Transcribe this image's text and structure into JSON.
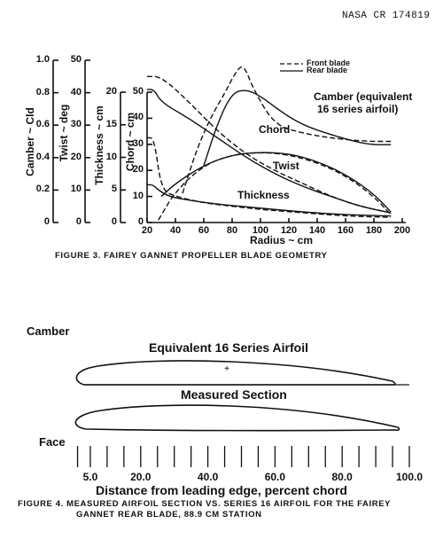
{
  "header": {
    "report_id": "NASA CR 174819"
  },
  "figure3": {
    "caption": "FIGURE 3. FAIREY GANNET PROPELLER BLADE GEOMETRY",
    "legend": {
      "front": "Front blade",
      "rear": "Rear blade"
    },
    "curve_labels": {
      "camber_line1": "Camber (equivalent",
      "camber_line2": "16 series airfoil)",
      "chord": "Chord",
      "twist": "Twist",
      "thickness": "Thickness"
    },
    "axes": {
      "camber": {
        "label": "Camber ~ Cld",
        "ticks": [
          "1.0",
          "0.8",
          "0.6",
          "0.4",
          "0.2",
          "0"
        ]
      },
      "twist": {
        "label": "Twist ~ deg",
        "ticks": [
          "50",
          "40",
          "30",
          "20",
          "10",
          "0"
        ]
      },
      "thickness": {
        "label": "Thickness ~ cm",
        "ticks": [
          "20",
          "15",
          "10",
          "5",
          "0"
        ]
      },
      "chord": {
        "label": "Chord ~ cm",
        "ticks": [
          "50",
          "40",
          "30",
          "20",
          "10",
          "0"
        ]
      },
      "radius": {
        "label": "Radius ~ cm",
        "ticks": [
          "20",
          "40",
          "60",
          "80",
          "100",
          "120",
          "140",
          "160",
          "180",
          "200"
        ]
      }
    }
  },
  "figure4": {
    "camber_label": "Camber",
    "upper_title": "Equivalent 16 Series Airfoil",
    "lower_title": "Measured Section",
    "face_label": "Face",
    "x_ticks": [
      "5.0",
      "20.0",
      "40.0",
      "60.0",
      "80.0",
      "100.0"
    ],
    "x_label": "Distance from leading edge, percent chord",
    "caption_line1": "FIGURE 4.  MEASURED AIRFOIL SECTION VS. SERIES 16 AIRFOIL FOR THE FAIREY",
    "caption_line2": "GANNET REAR BLADE, 88.9 CM STATION"
  },
  "chart_data": [
    {
      "type": "line",
      "title": "FAIREY GANNET PROPELLER BLADE GEOMETRY",
      "xlabel": "Radius ~ cm",
      "xlim": [
        20,
        200
      ],
      "y_axes": [
        {
          "label": "Camber ~ Cld",
          "lim": [
            0,
            1.0
          ]
        },
        {
          "label": "Twist ~ deg",
          "lim": [
            0,
            50
          ]
        },
        {
          "label": "Thickness ~ cm",
          "lim": [
            0,
            20
          ]
        },
        {
          "label": "Chord ~ cm",
          "lim": [
            0,
            50
          ]
        }
      ],
      "legend": {
        "front": "Front blade (dashed)",
        "rear": "Rear blade (solid)"
      },
      "series": [
        {
          "name": "Camber - Front blade",
          "axis": "Camber ~ Cld",
          "x": [
            45,
            55,
            65,
            75,
            82,
            88,
            95,
            110,
            130,
            150,
            175,
            192
          ],
          "y": [
            0.18,
            0.45,
            0.65,
            0.8,
            0.92,
            0.98,
            0.82,
            0.6,
            0.55,
            0.52,
            0.5,
            0.5
          ]
        },
        {
          "name": "Camber - Rear blade",
          "axis": "Camber ~ Cld",
          "x": [
            60,
            70,
            80,
            90,
            100,
            115,
            130,
            150,
            175,
            192
          ],
          "y": [
            0.35,
            0.62,
            0.8,
            0.82,
            0.78,
            0.68,
            0.6,
            0.54,
            0.48,
            0.48
          ]
        },
        {
          "name": "Chord - Front blade",
          "axis": "Chord ~ cm",
          "x": [
            28,
            40,
            60,
            80,
            100,
            120,
            140,
            160,
            180,
            192
          ],
          "y": [
            1,
            12,
            22,
            26,
            27,
            26,
            23,
            18,
            10,
            3
          ]
        },
        {
          "name": "Chord - Rear blade",
          "axis": "Chord ~ cm",
          "x": [
            30,
            40,
            60,
            80,
            100,
            120,
            140,
            160,
            180,
            192
          ],
          "y": [
            10,
            15,
            22,
            26,
            27,
            26.5,
            23.5,
            18.5,
            11,
            4
          ]
        },
        {
          "name": "Twist - Front blade",
          "axis": "Twist ~ deg",
          "x": [
            20,
            30,
            50,
            70,
            90,
            110,
            130,
            150,
            170,
            192
          ],
          "y": [
            45,
            45,
            37,
            28,
            21,
            16,
            12,
            8,
            5,
            3
          ]
        },
        {
          "name": "Twist - Rear blade",
          "axis": "Twist ~ deg",
          "x": [
            20,
            25,
            30,
            50,
            70,
            90,
            110,
            130,
            150,
            170,
            192
          ],
          "y": [
            41,
            41,
            37,
            32,
            26,
            20,
            15,
            11,
            8,
            5,
            3
          ]
        },
        {
          "name": "Thickness - Front blade",
          "axis": "Thickness ~ cm",
          "x": [
            20,
            25,
            30,
            40,
            60,
            80,
            100,
            130,
            160,
            192
          ],
          "y": [
            13,
            13,
            5,
            4,
            3,
            2.5,
            2,
            1.5,
            1,
            0.8
          ]
        },
        {
          "name": "Thickness - Rear blade",
          "axis": "Thickness ~ cm",
          "x": [
            20,
            24,
            28,
            35,
            50,
            70,
            100,
            130,
            160,
            192
          ],
          "y": [
            5.8,
            5.8,
            5,
            4,
            3.4,
            2.8,
            2.2,
            1.6,
            1.2,
            1
          ]
        }
      ]
    },
    {
      "type": "diagram",
      "title": "MEASURED AIRFOIL SECTION VS. SERIES 16 AIRFOIL",
      "xlabel": "Distance from leading edge, percent chord",
      "x_ticks": [
        5.0,
        20.0,
        40.0,
        60.0,
        80.0,
        100.0
      ],
      "shapes": [
        "Equivalent 16 Series Airfoil",
        "Measured Section"
      ]
    }
  ]
}
